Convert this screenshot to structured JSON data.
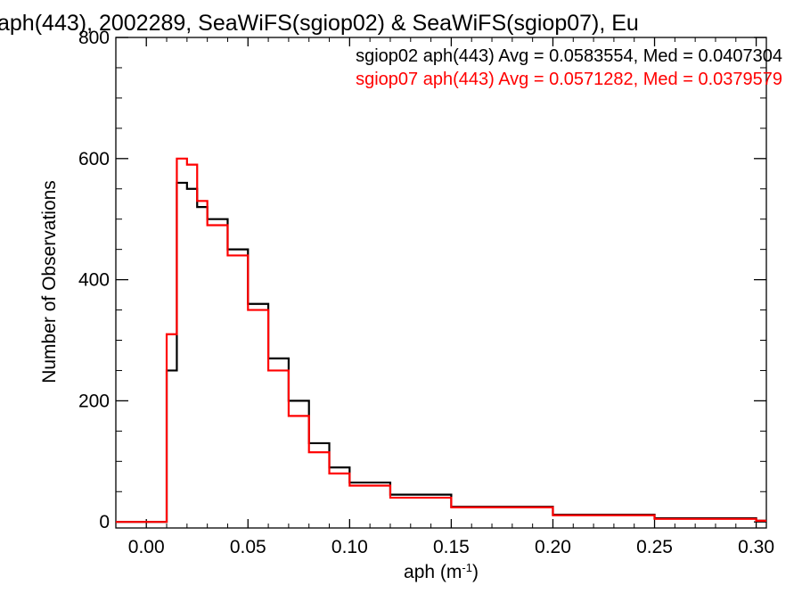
{
  "chart_data": {
    "type": "line",
    "title": "aph(443), 2002289, SeaWiFS(sgiop02) & SeaWiFS(sgiop07), Eu",
    "xlabel": "aph (m",
    "xlabel_sup": "-1",
    "xlabel_close": ")",
    "ylabel": "Number of Observations",
    "xlim": [
      -0.015,
      0.305
    ],
    "ylim": [
      -10,
      800
    ],
    "grid": false,
    "legend_position": "top-right",
    "x_ticks": [
      0.0,
      0.05,
      0.1,
      0.15,
      0.2,
      0.25,
      0.3
    ],
    "x_tick_labels": [
      "0.00",
      "0.05",
      "0.10",
      "0.15",
      "0.20",
      "0.25",
      "0.30"
    ],
    "y_ticks": [
      0,
      200,
      400,
      600,
      800
    ],
    "y_tick_labels": [
      "0",
      "200",
      "400",
      "600",
      "800"
    ],
    "series": [
      {
        "name": "sgiop02 aph(443) Avg = 0.0583554, Med = 0.0407304",
        "color": "#000000",
        "x": [
          0.0,
          0.01,
          0.015,
          0.02,
          0.025,
          0.03,
          0.04,
          0.05,
          0.06,
          0.07,
          0.08,
          0.09,
          0.1,
          0.12,
          0.15,
          0.2,
          0.25,
          0.3
        ],
        "y": [
          0,
          250,
          560,
          550,
          520,
          500,
          450,
          360,
          270,
          200,
          130,
          90,
          65,
          45,
          25,
          12,
          6,
          2
        ]
      },
      {
        "name": "sgiop07 aph(443) Avg = 0.0571282, Med = 0.0379579",
        "color": "#ff0000",
        "x": [
          0.0,
          0.01,
          0.015,
          0.02,
          0.025,
          0.03,
          0.04,
          0.05,
          0.06,
          0.07,
          0.08,
          0.09,
          0.1,
          0.12,
          0.15,
          0.2,
          0.25,
          0.3
        ],
        "y": [
          0,
          310,
          600,
          590,
          530,
          490,
          440,
          350,
          250,
          175,
          115,
          80,
          60,
          40,
          24,
          11,
          5,
          2
        ]
      }
    ]
  }
}
